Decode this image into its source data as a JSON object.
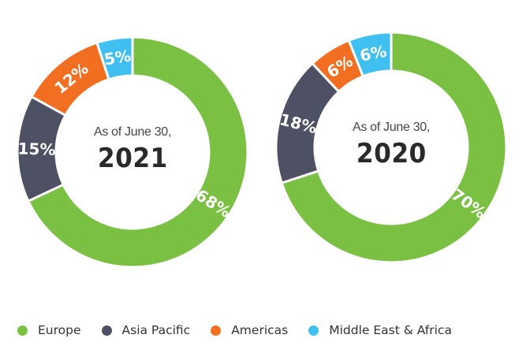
{
  "chart_data": [
    {
      "type": "pie",
      "variant": "donut",
      "title": "As of June 30, 2021",
      "subtitle": "As of June 30,",
      "year_label": "2021",
      "categories": [
        "Europe",
        "Asia Pacific",
        "Americas",
        "Middle East & Africa"
      ],
      "values": [
        68,
        15,
        12,
        5
      ],
      "labels": [
        "68%",
        "15%",
        "12%",
        "5%"
      ],
      "colors": [
        "#7ac143",
        "#4e5064",
        "#f26f21",
        "#3fc0f0"
      ],
      "start_angle_deg": 0,
      "direction": "clockwise"
    },
    {
      "type": "pie",
      "variant": "donut",
      "title": "As of June 30, 2020",
      "subtitle": "As of June 30,",
      "year_label": "2020",
      "categories": [
        "Europe",
        "Asia Pacific",
        "Americas",
        "Middle East & Africa"
      ],
      "values": [
        70,
        18,
        6,
        6
      ],
      "labels": [
        "70%",
        "18%",
        "6%",
        "6%"
      ],
      "colors": [
        "#7ac143",
        "#4e5064",
        "#f26f21",
        "#3fc0f0"
      ],
      "start_angle_deg": 0,
      "direction": "clockwise"
    }
  ],
  "charts": [
    {
      "subtitle": "As of June 30,",
      "year": "2021"
    },
    {
      "subtitle": "As of June 30,",
      "year": "2020"
    }
  ],
  "legend": {
    "position": "bottom",
    "items": [
      {
        "label": "Europe",
        "color": "#7ac143"
      },
      {
        "label": "Asia Pacific",
        "color": "#4e5064"
      },
      {
        "label": "Americas",
        "color": "#f26f21"
      },
      {
        "label": "Middle East & Africa",
        "color": "#3fc0f0"
      }
    ]
  }
}
